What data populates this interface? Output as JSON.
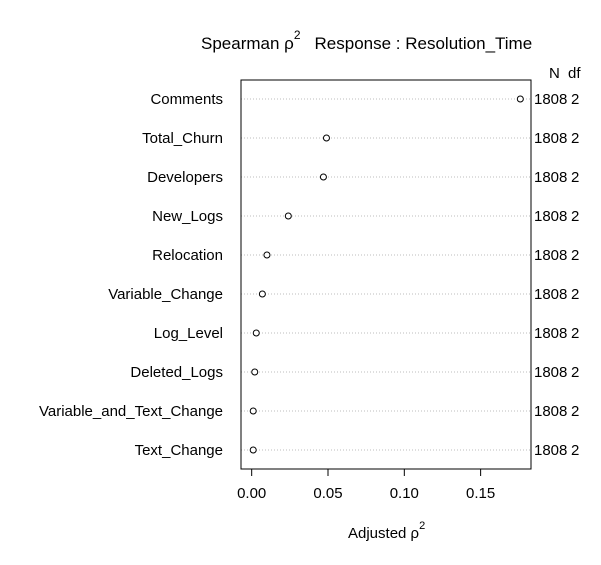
{
  "chart_data": {
    "type": "dot",
    "title": {
      "stat_prefix": "Spearman ",
      "stat_symbol": "ρ",
      "stat_exponent": "2",
      "response": "Response : Resolution_Time"
    },
    "right_headers": {
      "n": "N",
      "df": "df"
    },
    "categories": [
      "Comments",
      "Total_Churn",
      "Developers",
      "New_Logs",
      "Relocation",
      "Variable_Change",
      "Log_Level",
      "Deleted_Logs",
      "Variable_and_Text_Change",
      "Text_Change"
    ],
    "values": [
      0.176,
      0.049,
      0.047,
      0.024,
      0.01,
      0.007,
      0.003,
      0.002,
      0.001,
      0.001
    ],
    "n": [
      "1808",
      "1808",
      "1808",
      "1808",
      "1808",
      "1808",
      "1808",
      "1808",
      "1808",
      "1808"
    ],
    "df": [
      "2",
      "2",
      "2",
      "2",
      "2",
      "2",
      "2",
      "2",
      "2",
      "2"
    ],
    "xlabel": {
      "text": "Adjusted ",
      "symbol": "ρ",
      "exponent": "2"
    },
    "xlim": [
      -0.007,
      0.183
    ],
    "xticks": [
      0.0,
      0.05,
      0.1,
      0.15
    ],
    "xtick_labels": [
      "0.00",
      "0.05",
      "0.10",
      "0.15"
    ],
    "grid": "dotted",
    "colors": {
      "point_stroke": "#000000",
      "grid": "#bebebe",
      "frame": "#000000"
    }
  }
}
